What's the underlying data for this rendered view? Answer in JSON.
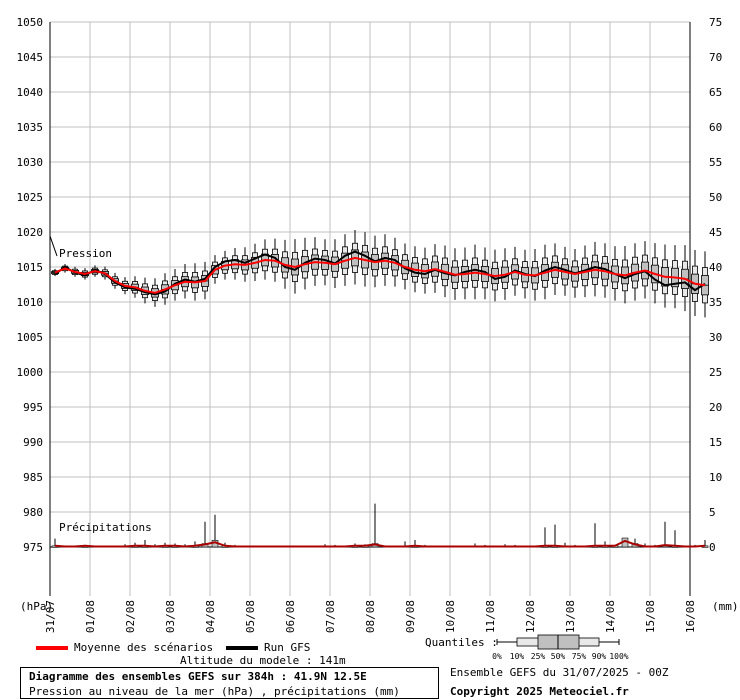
{
  "chart_data": {
    "type": "ensemble_boxplot",
    "title": "Diagramme des ensembles GEFS sur 384h : 41.9N 12.5E",
    "subtitle": "Pression au niveau de la mer (hPa) , précipitations (mm)",
    "left_axis_label": "(hPa)",
    "right_axis_label": "(mm)",
    "pressure_ticks": [
      975,
      980,
      985,
      990,
      995,
      1000,
      1005,
      1010,
      1015,
      1020,
      1025,
      1030,
      1035,
      1040,
      1045,
      1050
    ],
    "precip_ticks": [
      0,
      5,
      10,
      15,
      20,
      25,
      30,
      35,
      40,
      45,
      50,
      55,
      60,
      65,
      70,
      75
    ],
    "date_labels": [
      "31/07",
      "01/08",
      "02/08",
      "03/08",
      "04/08",
      "05/08",
      "06/08",
      "07/08",
      "08/08",
      "09/08",
      "10/08",
      "11/08",
      "12/08",
      "13/08",
      "14/08",
      "15/08",
      "16/08"
    ],
    "pressure_label": "Pression",
    "precip_label": "Précipitations",
    "grid": true,
    "hours_step": 6,
    "pressure_mean": [
      1014.2,
      1014.8,
      1014.3,
      1014.0,
      1014.4,
      1014.1,
      1013.0,
      1012.3,
      1012.1,
      1011.6,
      1011.3,
      1011.8,
      1012.4,
      1012.9,
      1012.8,
      1013.0,
      1014.6,
      1015.2,
      1015.4,
      1015.3,
      1015.6,
      1016.0,
      1015.9,
      1015.3,
      1015.0,
      1015.4,
      1015.7,
      1015.6,
      1015.4,
      1015.9,
      1016.3,
      1016.0,
      1015.7,
      1015.9,
      1015.6,
      1015.0,
      1014.6,
      1014.4,
      1014.7,
      1014.3,
      1013.9,
      1014.0,
      1014.2,
      1014.0,
      1013.7,
      1013.9,
      1014.3,
      1013.9,
      1013.8,
      1014.2,
      1014.6,
      1014.3,
      1014.0,
      1014.3,
      1014.6,
      1014.4,
      1014.0,
      1013.8,
      1014.2,
      1014.5,
      1014.0,
      1013.6,
      1013.5,
      1013.3,
      1012.6,
      1012.4
    ],
    "pressure_gfs": [
      1014.0,
      1015.0,
      1014.2,
      1013.8,
      1014.6,
      1014.0,
      1012.8,
      1012.1,
      1011.9,
      1011.4,
      1011.1,
      1011.5,
      1012.6,
      1013.2,
      1012.9,
      1013.3,
      1015.0,
      1015.8,
      1016.0,
      1015.6,
      1016.2,
      1016.8,
      1016.3,
      1015.0,
      1014.6,
      1015.6,
      1016.2,
      1016.0,
      1015.5,
      1016.6,
      1017.2,
      1016.6,
      1015.8,
      1016.3,
      1016.0,
      1014.8,
      1014.2,
      1014.0,
      1014.6,
      1014.1,
      1013.8,
      1014.3,
      1014.6,
      1014.3,
      1013.3,
      1013.6,
      1014.5,
      1014.0,
      1013.7,
      1014.5,
      1015.0,
      1014.6,
      1014.1,
      1014.5,
      1015.0,
      1014.7,
      1014.0,
      1013.4,
      1014.0,
      1014.4,
      1013.2,
      1012.4,
      1012.6,
      1012.8,
      1011.7,
      1012.6
    ],
    "pressure_spread": [
      0.5,
      0.6,
      0.7,
      0.8,
      0.8,
      0.9,
      1.1,
      1.2,
      1.5,
      1.8,
      2.0,
      2.2,
      2.2,
      2.4,
      2.6,
      2.6,
      2.0,
      2.0,
      2.2,
      2.4,
      2.6,
      2.8,
      3.0,
      3.4,
      3.8,
      3.6,
      3.4,
      3.2,
      3.4,
      3.6,
      3.8,
      3.8,
      3.6,
      3.6,
      3.4,
      3.2,
      3.2,
      3.2,
      3.4,
      3.6,
      3.6,
      3.6,
      3.8,
      3.6,
      3.6,
      3.6,
      3.4,
      3.4,
      3.6,
      3.8,
      3.6,
      3.4,
      3.4,
      3.6,
      3.8,
      3.8,
      3.8,
      4.0,
      4.0,
      4.0,
      4.2,
      4.4,
      4.4,
      4.6,
      4.6,
      4.6
    ],
    "precip_max": [
      1.2,
      0.2,
      0,
      0.3,
      0,
      0,
      0.2,
      0.4,
      0.6,
      1.0,
      0.4,
      0.6,
      0.5,
      0.4,
      0.8,
      3.6,
      4.6,
      0.6,
      0.3,
      0,
      0,
      0,
      0,
      0,
      0,
      0,
      0,
      0.4,
      0.3,
      0.2,
      0.5,
      0.4,
      6.2,
      0.2,
      0,
      0.8,
      1.0,
      0.3,
      0.2,
      0,
      0,
      0,
      0.5,
      0.3,
      0.2,
      0.4,
      0.3,
      0,
      0.2,
      2.8,
      3.2,
      0.6,
      0.3,
      0.2,
      3.4,
      0.8,
      0.3,
      0.2,
      1.2,
      0.5,
      0.3,
      3.6,
      2.4,
      0.2,
      0.3,
      1.0
    ],
    "precip_mean": [
      0.1,
      0,
      0,
      0.1,
      0,
      0,
      0,
      0,
      0.1,
      0.1,
      0,
      0.1,
      0.1,
      0,
      0.1,
      0.3,
      0.6,
      0.1,
      0,
      0,
      0,
      0,
      0,
      0,
      0,
      0,
      0,
      0,
      0,
      0,
      0.1,
      0.1,
      0.3,
      0,
      0,
      0,
      0.1,
      0,
      0,
      0,
      0,
      0,
      0,
      0,
      0,
      0,
      0,
      0,
      0,
      0.1,
      0.1,
      0,
      0,
      0,
      0.1,
      0.1,
      0.1,
      0.8,
      0.3,
      0,
      0,
      0.2,
      0.1,
      0,
      0,
      0.1
    ],
    "legend": {
      "mean_label": "Moyenne des scénarios",
      "gfs_label": "Run GFS",
      "quantiles_label": "Quantiles :",
      "quantile_ticks": [
        "0%",
        "10%",
        "25%",
        "50%",
        "75%",
        "90%",
        "100%"
      ]
    },
    "altitude_text": "Altitude du modele : 141m",
    "run_text": "Ensemble GEFS du 31/07/2025 - 00Z",
    "copyright_text": "Copyright 2025 Meteociel.fr",
    "colors": {
      "mean": "#ff0000",
      "gfs": "#000000",
      "box": "#c0c0c0",
      "grid": "#c0c0c0",
      "precip_mean": "#aa0000"
    }
  }
}
